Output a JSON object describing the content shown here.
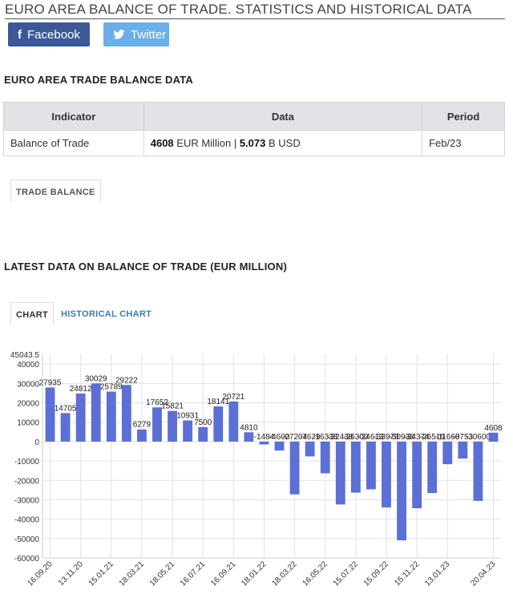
{
  "page": {
    "title": "EURO AREA BALANCE OF TRADE. STATISTICS AND HISTORICAL DATA"
  },
  "share": {
    "facebook_label": "Facebook",
    "twitter_label": "Twitter"
  },
  "section1": {
    "heading": "EURO AREA TRADE BALANCE DATA",
    "table": {
      "headers": [
        "Indicator",
        "Data",
        "Period"
      ],
      "row": {
        "indicator": "Balance of Trade",
        "eur_value": "4608",
        "eur_unit": "EUR Million",
        "sep": "|",
        "usd_value": "5.073",
        "usd_unit": "B USD",
        "period": "Feb/23"
      }
    },
    "tab_label": "TRADE BALANCE"
  },
  "section2": {
    "heading": "LATEST DATA ON BALANCE OF TRADE (EUR MILLION)",
    "tabs": [
      "CHART",
      "HISTORICAL CHART"
    ]
  },
  "colors": {
    "bar": "#5b6fd6",
    "grid": "#e2e2e2",
    "facebook": "#3b5998",
    "twitter": "#6aaeea"
  },
  "chart_data": {
    "type": "bar",
    "title": "",
    "xlabel": "",
    "ylabel": "",
    "ylim": [
      -60000,
      45043.5
    ],
    "top_label": "45043.5",
    "y_ticks": [
      40000,
      30000,
      20000,
      10000,
      0,
      -10000,
      -20000,
      -30000,
      -40000,
      -50000,
      -60000
    ],
    "x_tick_labels": [
      "16.09.20",
      "13.11.20",
      "15.01.21",
      "18.03.21",
      "18.05.21",
      "16.07.21",
      "16.09.21",
      "18.01.22",
      "18.03.22",
      "16.05.22",
      "15.07.22",
      "15.09.22",
      "15.11.22",
      "13.01.23",
      "20.04.23"
    ],
    "values": [
      27935,
      14705,
      24812,
      30029,
      25789,
      29222,
      6279,
      17652,
      15821,
      10931,
      7500,
      18141,
      20721,
      4810,
      -1484,
      -4600,
      -27204,
      -7629,
      -16338,
      -32438,
      -26300,
      -24613,
      -33970,
      -50938,
      -34374,
      -26519,
      -11660,
      -8753,
      -30600,
      4608
    ],
    "data_labels": [
      "27935",
      "14705",
      "24812",
      "30029",
      "25789",
      "29222",
      "6279",
      "17652",
      "15821",
      "10931",
      "7500",
      "18141",
      "20721",
      "4810",
      "-1484",
      "-4600",
      "-27204",
      "-7629",
      "-16338",
      "-32438",
      "-26300",
      "-24613",
      "-33970",
      "-50938",
      "-34374",
      "-26519",
      "-11660",
      "-8753",
      "-30600",
      "4608"
    ],
    "grid": true,
    "legend": "none"
  }
}
